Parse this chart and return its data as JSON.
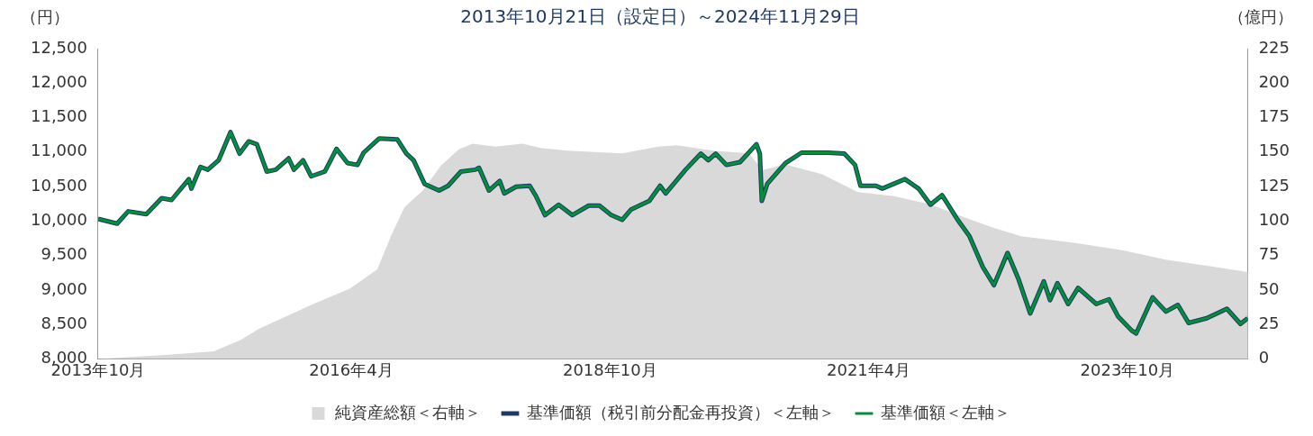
{
  "chart_data": {
    "type": "line",
    "title": "2013年10月21日（設定日）～2024年11月29日",
    "ylabel": "（円）",
    "y2label": "（億円）",
    "xlim": [
      "2013-10-21",
      "2024-11-29"
    ],
    "xticks": [
      {
        "value": "2013-10-21",
        "label": "2013年10月"
      },
      {
        "value": "2016-04-01",
        "label": "2016年4月"
      },
      {
        "value": "2018-10-01",
        "label": "2018年10月"
      },
      {
        "value": "2021-04-01",
        "label": "2021年4月"
      },
      {
        "value": "2023-10-01",
        "label": "2023年10月"
      }
    ],
    "ylim": [
      8000,
      12500
    ],
    "yticks": [
      {
        "value": 8000,
        "label": "8,000"
      },
      {
        "value": 8500,
        "label": "8,500"
      },
      {
        "value": 9000,
        "label": "9,000"
      },
      {
        "value": 9500,
        "label": "9,500"
      },
      {
        "value": 10000,
        "label": "10,000"
      },
      {
        "value": 10500,
        "label": "10,500"
      },
      {
        "value": 11000,
        "label": "11,000"
      },
      {
        "value": 11500,
        "label": "11,500"
      },
      {
        "value": 12000,
        "label": "12,000"
      },
      {
        "value": 12500,
        "label": "12,500"
      }
    ],
    "y2lim": [
      0,
      225
    ],
    "y2ticks": [
      0,
      25,
      50,
      75,
      100,
      125,
      150,
      175,
      200,
      225
    ],
    "grid": false,
    "legend": "bottom",
    "marker": "none",
    "series": [
      {
        "name": "純資産総額＜右軸＞",
        "type": "area",
        "axis": "y2",
        "color": "#d9d9d9",
        "x": [
          "2013-10-21",
          "2014-06-28",
          "2014-12-04",
          "2015-03-10",
          "2015-05-13",
          "2015-08-17",
          "2015-11-21",
          "2016-03-28",
          "2016-07-02",
          "2016-08-19",
          "2016-10-06",
          "2016-12-09",
          "2017-02-11",
          "2017-04-16",
          "2017-06-03",
          "2017-08-22",
          "2017-11-26",
          "2018-01-29",
          "2018-05-05",
          "2018-11-13",
          "2019-03-21",
          "2019-05-24",
          "2019-09-29",
          "2020-02-04",
          "2020-03-23",
          "2020-06-11",
          "2020-10-17",
          "2021-02-22",
          "2021-06-30",
          "2021-11-05",
          "2022-03-13",
          "2022-06-17",
          "2022-09-21",
          "2023-04-01",
          "2023-09-08",
          "2024-02-14",
          "2024-07-23",
          "2024-11-29"
        ],
        "values": [
          0,
          3,
          5.5,
          14,
          22,
          31,
          40,
          51,
          65,
          89,
          110,
          122,
          140,
          152,
          156,
          154,
          156,
          153,
          151,
          149,
          154,
          155,
          151,
          149,
          137,
          141,
          134,
          121,
          118,
          112,
          102,
          95,
          89,
          84,
          79,
          72,
          67,
          63
        ]
      },
      {
        "name": "基準価額（税引前分配金再投資）＜左軸＞",
        "type": "line",
        "color": "#1f3864",
        "x": [
          "2013-10-21",
          "2013-12-27",
          "2014-02-04",
          "2014-04-09",
          "2014-06-02",
          "2014-07-07",
          "2014-09-06",
          "2014-09-15",
          "2014-10-17",
          "2014-11-12",
          "2014-12-20",
          "2015-01-31",
          "2015-03-04",
          "2015-04-05",
          "2015-05-04",
          "2015-06-08",
          "2015-07-10",
          "2015-08-24",
          "2015-09-12",
          "2015-10-14",
          "2015-11-12",
          "2015-12-30",
          "2016-02-09",
          "2016-03-19",
          "2016-04-23",
          "2016-05-15",
          "2016-07-09",
          "2016-09-11",
          "2016-10-13",
          "2016-11-07",
          "2016-12-16",
          "2017-02-05",
          "2017-03-09",
          "2017-04-23",
          "2017-06-13",
          "2017-06-26",
          "2017-07-31",
          "2017-09-07",
          "2017-09-23",
          "2017-11-04",
          "2017-12-22",
          "2018-01-13",
          "2018-02-14",
          "2018-04-03",
          "2018-05-21",
          "2018-07-18",
          "2018-08-25",
          "2018-10-06",
          "2018-11-13",
          "2018-12-15",
          "2019-02-17",
          "2019-03-27",
          "2019-04-16",
          "2019-06-25",
          "2019-08-18",
          "2019-09-13",
          "2019-10-09",
          "2019-11-16",
          "2020-01-03",
          "2020-03-01",
          "2020-03-13",
          "2020-03-20",
          "2020-04-08",
          "2020-06-11",
          "2020-08-07",
          "2020-11-08",
          "2021-01-05",
          "2021-02-12",
          "2021-03-03",
          "2021-04-27",
          "2021-05-19",
          "2021-08-07",
          "2021-09-24",
          "2021-11-05",
          "2021-12-16",
          "2022-02-09",
          "2022-03-22",
          "2022-05-09",
          "2022-06-17",
          "2022-08-04",
          "2022-09-11",
          "2022-10-23",
          "2022-12-10",
          "2023-01-01",
          "2023-01-27",
          "2023-03-06",
          "2023-04-10",
          "2023-06-13",
          "2023-07-28",
          "2023-08-29",
          "2023-10-16",
          "2023-11-01",
          "2023-12-29",
          "2024-02-14",
          "2024-03-27",
          "2024-05-04",
          "2024-07-07",
          "2024-09-16",
          "2024-11-03",
          "2024-11-29"
        ],
        "values": [
          10030,
          9962,
          10140,
          10100,
          10330,
          10305,
          10607,
          10470,
          10785,
          10744,
          10880,
          11290,
          10977,
          11155,
          11114,
          10717,
          10744,
          10909,
          10744,
          10881,
          10648,
          10717,
          11046,
          10840,
          10813,
          10991,
          11197,
          11183,
          10977,
          10881,
          10538,
          10442,
          10511,
          10717,
          10744,
          10771,
          10442,
          10580,
          10400,
          10497,
          10511,
          10360,
          10085,
          10237,
          10085,
          10223,
          10223,
          10085,
          10017,
          10168,
          10291,
          10511,
          10400,
          10744,
          10977,
          10881,
          10977,
          10813,
          10854,
          11114,
          10977,
          10291,
          10538,
          10840,
          10991,
          10991,
          10977,
          10813,
          10511,
          10511,
          10470,
          10607,
          10470,
          10237,
          10374,
          10017,
          9784,
          9331,
          9070,
          9537,
          9166,
          8659,
          9125,
          8851,
          9098,
          8796,
          9029,
          8796,
          8864,
          8617,
          8412,
          8370,
          8892,
          8686,
          8782,
          8521,
          8590,
          8727,
          8508,
          8590
        ]
      },
      {
        "name": "基準価額＜左軸＞",
        "type": "line",
        "color": "#00913a",
        "x": [
          "2013-10-21",
          "2013-12-27",
          "2014-02-04",
          "2014-04-09",
          "2014-06-02",
          "2014-07-07",
          "2014-09-06",
          "2014-09-15",
          "2014-10-17",
          "2014-11-12",
          "2014-12-20",
          "2015-01-31",
          "2015-03-04",
          "2015-04-05",
          "2015-05-04",
          "2015-06-08",
          "2015-07-10",
          "2015-08-24",
          "2015-09-12",
          "2015-10-14",
          "2015-11-12",
          "2015-12-30",
          "2016-02-09",
          "2016-03-19",
          "2016-04-23",
          "2016-05-15",
          "2016-07-09",
          "2016-09-11",
          "2016-10-13",
          "2016-11-07",
          "2016-12-16",
          "2017-02-05",
          "2017-03-09",
          "2017-04-23",
          "2017-06-13",
          "2017-06-26",
          "2017-07-31",
          "2017-09-07",
          "2017-09-23",
          "2017-11-04",
          "2017-12-22",
          "2018-01-13",
          "2018-02-14",
          "2018-04-03",
          "2018-05-21",
          "2018-07-18",
          "2018-08-25",
          "2018-10-06",
          "2018-11-13",
          "2018-12-15",
          "2019-02-17",
          "2019-03-27",
          "2019-04-16",
          "2019-06-25",
          "2019-08-18",
          "2019-09-13",
          "2019-10-09",
          "2019-11-16",
          "2020-01-03",
          "2020-03-01",
          "2020-03-13",
          "2020-03-20",
          "2020-04-08",
          "2020-06-11",
          "2020-08-07",
          "2020-11-08",
          "2021-01-05",
          "2021-02-12",
          "2021-03-03",
          "2021-04-27",
          "2021-05-19",
          "2021-08-07",
          "2021-09-24",
          "2021-11-05",
          "2021-12-16",
          "2022-02-09",
          "2022-03-22",
          "2022-05-09",
          "2022-06-17",
          "2022-08-04",
          "2022-09-11",
          "2022-10-23",
          "2022-12-10",
          "2023-01-01",
          "2023-01-27",
          "2023-03-06",
          "2023-04-10",
          "2023-06-13",
          "2023-07-28",
          "2023-08-29",
          "2023-10-16",
          "2023-11-01",
          "2023-12-29",
          "2024-02-14",
          "2024-03-27",
          "2024-05-04",
          "2024-07-07",
          "2024-09-16",
          "2024-11-03",
          "2024-11-29"
        ],
        "values": [
          10030,
          9962,
          10140,
          10100,
          10330,
          10305,
          10607,
          10470,
          10785,
          10744,
          10880,
          11290,
          10977,
          11155,
          11114,
          10717,
          10744,
          10909,
          10744,
          10881,
          10648,
          10717,
          11046,
          10840,
          10813,
          10991,
          11197,
          11183,
          10977,
          10881,
          10538,
          10442,
          10511,
          10717,
          10744,
          10771,
          10442,
          10580,
          10400,
          10497,
          10511,
          10360,
          10085,
          10237,
          10085,
          10223,
          10223,
          10085,
          10017,
          10168,
          10291,
          10511,
          10400,
          10744,
          10977,
          10881,
          10977,
          10813,
          10854,
          11114,
          10977,
          10291,
          10538,
          10840,
          10991,
          10991,
          10977,
          10813,
          10511,
          10511,
          10470,
          10607,
          10470,
          10237,
          10374,
          10017,
          9784,
          9331,
          9070,
          9537,
          9166,
          8659,
          9125,
          8851,
          9098,
          8796,
          9029,
          8796,
          8864,
          8617,
          8412,
          8370,
          8892,
          8686,
          8782,
          8521,
          8590,
          8727,
          8508,
          8590
        ]
      }
    ]
  }
}
